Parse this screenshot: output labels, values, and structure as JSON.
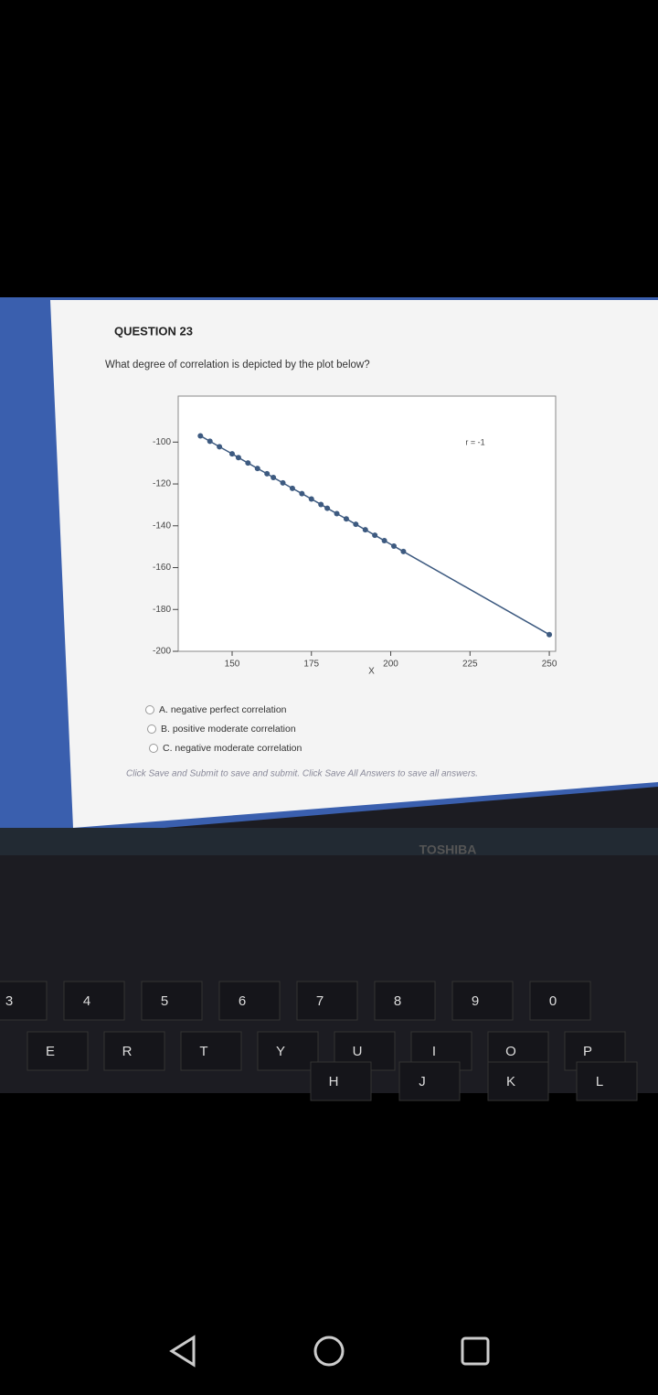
{
  "question": {
    "number": "QUESTION 23",
    "prompt": "What degree of correlation is depicted by the plot below?",
    "options": [
      "A. negative perfect correlation",
      "B. positive moderate correlation",
      "C. negative moderate correlation"
    ],
    "instruction": "Click Save and Submit to save and submit. Click Save All Answers to save all answers."
  },
  "chart_data": {
    "type": "line",
    "xlabel": "X",
    "annotation": "r = -1",
    "color": "#3d5a80",
    "x": [
      140,
      143,
      146,
      150,
      152,
      155,
      158,
      161,
      163,
      166,
      169,
      172,
      175,
      178,
      180,
      183,
      186,
      189,
      192,
      195,
      198,
      201,
      204,
      250
    ],
    "values": [
      -97,
      -99.6,
      -102.2,
      -105.6,
      -107.4,
      -110,
      -112.6,
      -115.1,
      -116.9,
      -119.5,
      -122.1,
      -124.6,
      -127.2,
      -129.8,
      -131.6,
      -134.2,
      -136.7,
      -139.3,
      -141.9,
      -144.5,
      -147.1,
      -149.7,
      -152.3,
      -192
    ],
    "xlim": [
      133,
      252
    ],
    "ylim": [
      -200,
      -78
    ],
    "xticks": [
      150,
      175,
      200,
      225,
      250
    ],
    "yticks": [
      -100,
      -120,
      -140,
      -160,
      -180,
      -200
    ]
  },
  "laptop": {
    "brand": "TOSHIBA"
  },
  "keyboard": {
    "numbers": [
      "3",
      "4",
      "5",
      "6",
      "7",
      "8",
      "9",
      "0"
    ],
    "top_row": [
      "E",
      "R",
      "T",
      "Y",
      "U",
      "I",
      "O",
      "P"
    ],
    "home_row": [
      "H",
      "J",
      "K",
      "L"
    ]
  }
}
